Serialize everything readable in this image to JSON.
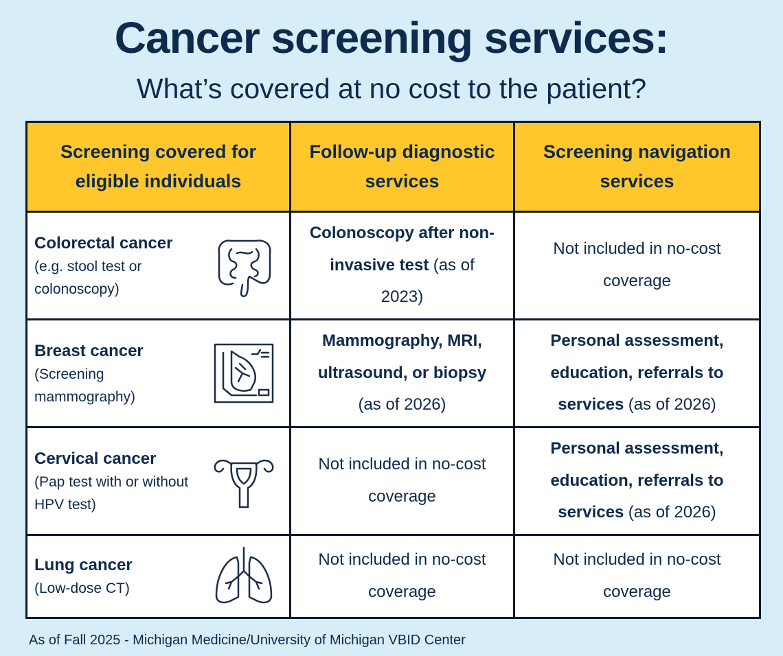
{
  "header": {
    "title": "Cancer screening services:",
    "subtitle": "What’s covered at no cost to the patient?"
  },
  "table": {
    "columns": [
      "Screening covered for eligible individuals",
      "Follow-up diagnostic services",
      "Screening navigation services"
    ],
    "rows": [
      {
        "screening": {
          "name": "Colorectal cancer",
          "detail": "(e.g. stool test or colonoscopy)"
        },
        "followup": {
          "parts": [
            {
              "text": "Colonoscopy after non-invasive test",
              "bold": true
            },
            {
              "text": "(as of 2023)",
              "bold": false
            }
          ]
        },
        "navigation": {
          "parts": [
            {
              "text": "Not included in no-cost coverage",
              "bold": false
            }
          ]
        }
      },
      {
        "screening": {
          "name": "Breast cancer",
          "detail": "(Screening mammography)"
        },
        "followup": {
          "parts": [
            {
              "text": "Mammography, MRI, ultrasound, or biopsy",
              "bold": true
            },
            {
              "text": "(as of 2026)",
              "bold": false
            }
          ]
        },
        "navigation": {
          "parts": [
            {
              "text": "Personal assessment, education, referrals to services",
              "bold": true
            },
            {
              "text": "(as of 2026)",
              "bold": false
            }
          ]
        }
      },
      {
        "screening": {
          "name": "Cervical cancer",
          "detail": "(Pap test with or without HPV test)"
        },
        "followup": {
          "parts": [
            {
              "text": "Not included in no-cost coverage",
              "bold": false
            }
          ]
        },
        "navigation": {
          "parts": [
            {
              "text": "Personal assessment, education, referrals to services",
              "bold": true
            },
            {
              "text": "(as of 2026)",
              "bold": false
            }
          ]
        }
      },
      {
        "screening": {
          "name": "Lung cancer",
          "detail": "(Low-dose CT)"
        },
        "followup": {
          "parts": [
            {
              "text": "Not included in no-cost coverage",
              "bold": false
            }
          ]
        },
        "navigation": {
          "parts": [
            {
              "text": "Not included in no-cost coverage",
              "bold": false
            }
          ]
        }
      }
    ]
  },
  "footer": "As of Fall 2025 - Michigan Medicine/University of Michigan VBID Center"
}
